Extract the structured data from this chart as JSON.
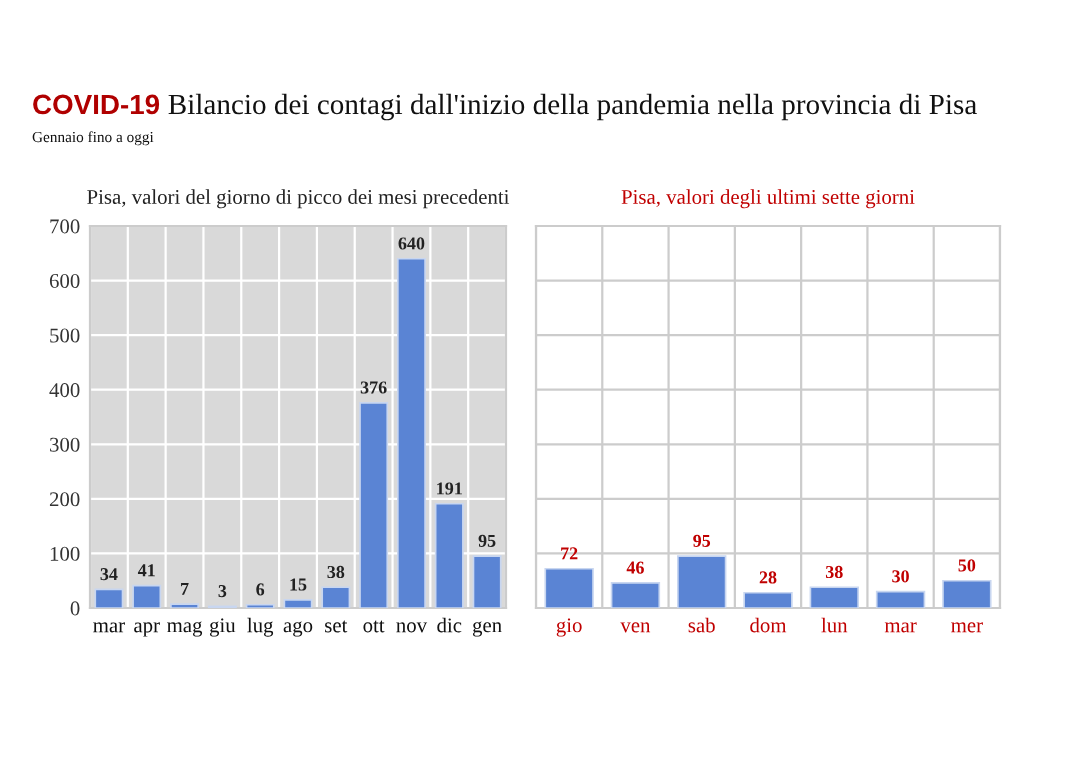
{
  "chart_data": [
    {
      "type": "bar",
      "title": "Pisa, valori del giorno di picco dei mesi precedenti",
      "annotations": [
        "COVID-19",
        "Bilancio dei contagi dall'inizio della pandemia nella provincia di Pisa",
        "Gennaio fino a oggi"
      ],
      "categories": [
        "mar",
        "apr",
        "mag",
        "giu",
        "lug",
        "ago",
        "set",
        "ott",
        "nov",
        "dic",
        "gen"
      ],
      "values": [
        34,
        41,
        7,
        3,
        6,
        15,
        38,
        376,
        640,
        191,
        95
      ],
      "color": "#5a84d4",
      "ylim": [
        0,
        700
      ],
      "yticks": [
        0,
        100,
        200,
        300,
        400,
        500,
        600,
        700
      ],
      "grid": true,
      "data_labels": true
    },
    {
      "type": "bar",
      "title": "Pisa, valori degli ultimi sette giorni",
      "categories": [
        "gio",
        "ven",
        "sab",
        "dom",
        "lun",
        "mar",
        "mer"
      ],
      "values": [
        72,
        46,
        95,
        28,
        38,
        30,
        50
      ],
      "color": "#5a84d4",
      "ylim": [
        0,
        700
      ],
      "yticks": [
        0,
        100,
        200,
        300,
        400,
        500,
        600,
        700
      ],
      "grid": true,
      "data_labels": true,
      "tick_labels": "x"
    }
  ]
}
